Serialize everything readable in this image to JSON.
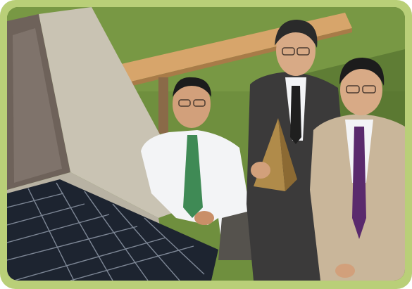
{
  "scene": {
    "description_colors": {
      "frame": "#b9cf78",
      "grass": "#6f8f3e",
      "grass_dark": "#4e6a2b",
      "wood": "#d7a56b",
      "wall": "#c9c3b3",
      "solar_panel": "#1d2430",
      "solar_cell_line": "#8f99a8",
      "shirt_white": "#f3f4f6",
      "tie_green": "#3f8a55",
      "suit_dark": "#3b3a3a",
      "suit_beige": "#c9b69a",
      "tie_purple": "#5a2a6d",
      "trophy_gold": "#b08b4a",
      "skin": "#d2a07b",
      "hair": "#1c1c1c"
    }
  }
}
